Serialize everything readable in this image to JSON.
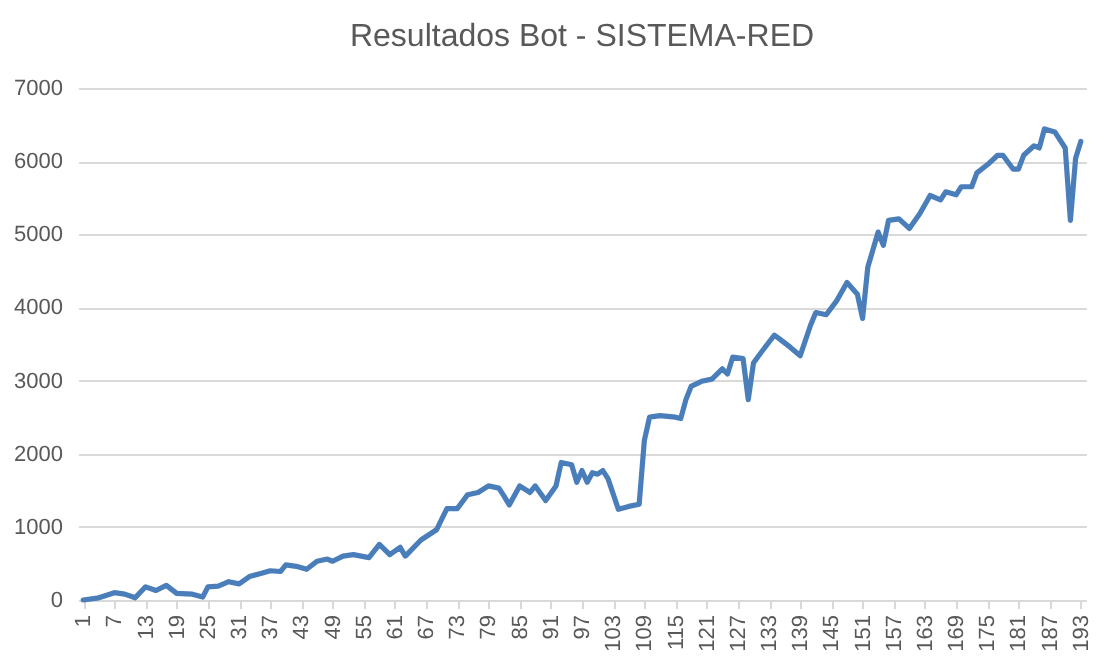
{
  "chart_data": {
    "type": "line",
    "title": "Resultados Bot - SISTEMA-RED",
    "x": [
      1,
      4,
      7,
      9,
      11,
      13,
      15,
      17,
      19,
      22,
      24,
      25,
      27,
      29,
      31,
      33,
      35,
      37,
      39,
      40,
      42,
      44,
      46,
      48,
      49,
      51,
      53,
      56,
      58,
      60,
      62,
      63,
      66,
      69,
      71,
      73,
      75,
      77,
      79,
      81,
      82,
      83,
      85,
      87,
      88,
      90,
      92,
      93,
      95,
      96,
      97,
      98,
      99,
      100,
      101,
      102,
      104,
      106,
      108,
      109,
      110,
      112,
      115,
      116,
      117,
      118,
      120,
      122,
      124,
      125,
      126,
      128,
      129,
      130,
      131,
      134,
      135,
      137,
      139,
      141,
      142,
      144,
      146,
      148,
      150,
      151,
      152,
      154,
      155,
      156,
      158,
      160,
      162,
      164,
      166,
      167,
      169,
      170,
      172,
      173,
      175,
      177,
      178,
      180,
      181,
      182,
      184,
      185,
      186,
      188,
      190,
      191,
      192,
      193
    ],
    "series": [
      {
        "color": "#4a7ebb",
        "values": [
          0,
          30,
          100,
          80,
          30,
          180,
          130,
          200,
          90,
          80,
          40,
          180,
          190,
          250,
          220,
          320,
          360,
          400,
          390,
          480,
          460,
          420,
          530,
          560,
          530,
          600,
          620,
          580,
          760,
          620,
          720,
          600,
          820,
          960,
          1250,
          1250,
          1440,
          1470,
          1560,
          1530,
          1420,
          1300,
          1560,
          1470,
          1560,
          1360,
          1560,
          1880,
          1850,
          1610,
          1770,
          1610,
          1740,
          1720,
          1770,
          1660,
          1240,
          1280,
          1310,
          2180,
          2500,
          2520,
          2500,
          2480,
          2740,
          2920,
          2990,
          3020,
          3160,
          3090,
          3320,
          3300,
          2740,
          3240,
          3340,
          3620,
          3570,
          3460,
          3340,
          3760,
          3930,
          3900,
          4090,
          4340,
          4180,
          3850,
          4550,
          5030,
          4850,
          5190,
          5210,
          5080,
          5280,
          5530,
          5470,
          5580,
          5540,
          5650,
          5650,
          5840,
          5950,
          6080,
          6080,
          5890,
          5890,
          6080,
          6210,
          6180,
          6440,
          6400,
          6180,
          5190,
          6040,
          6270
        ]
      }
    ],
    "xlim": [
      0,
      194
    ],
    "xticks": [
      1,
      7,
      13,
      19,
      25,
      31,
      37,
      43,
      49,
      55,
      61,
      67,
      73,
      79,
      85,
      91,
      97,
      103,
      109,
      115,
      121,
      127,
      133,
      139,
      145,
      151,
      157,
      163,
      169,
      175,
      181,
      187,
      193
    ],
    "ylim": [
      0,
      7000
    ],
    "yticks": [
      0,
      1000,
      2000,
      3000,
      4000,
      5000,
      6000,
      7000
    ],
    "grid": "y",
    "marker": "none",
    "line_style": "solid"
  }
}
